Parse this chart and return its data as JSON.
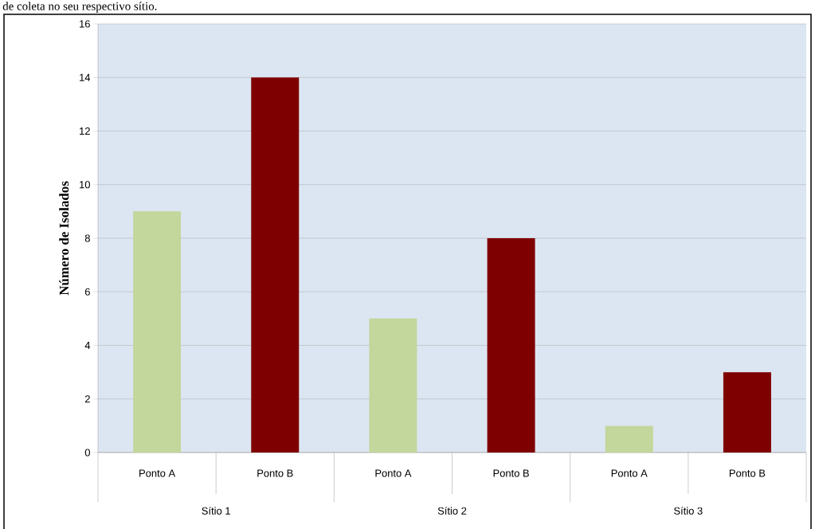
{
  "chart_data": {
    "type": "bar",
    "categories": [
      "Ponto A",
      "Ponto B",
      "Ponto A",
      "Ponto B",
      "Ponto A",
      "Ponto B"
    ],
    "values": [
      9,
      14,
      5,
      8,
      1,
      3
    ],
    "colors": [
      "#c3d69b",
      "#7f0000",
      "#c3d69b",
      "#7f0000",
      "#c3d69b",
      "#7f0000"
    ],
    "ylabel": "Número de Isolados",
    "ylim": [
      0,
      16
    ],
    "yticks": [
      0,
      2,
      4,
      6,
      8,
      10,
      12,
      14,
      16
    ],
    "grid": "y",
    "annotations": [
      "de coleta no seu respectivo sítio.",
      "Sítio 1",
      "Sítio 2",
      "Sítio 3"
    ]
  }
}
